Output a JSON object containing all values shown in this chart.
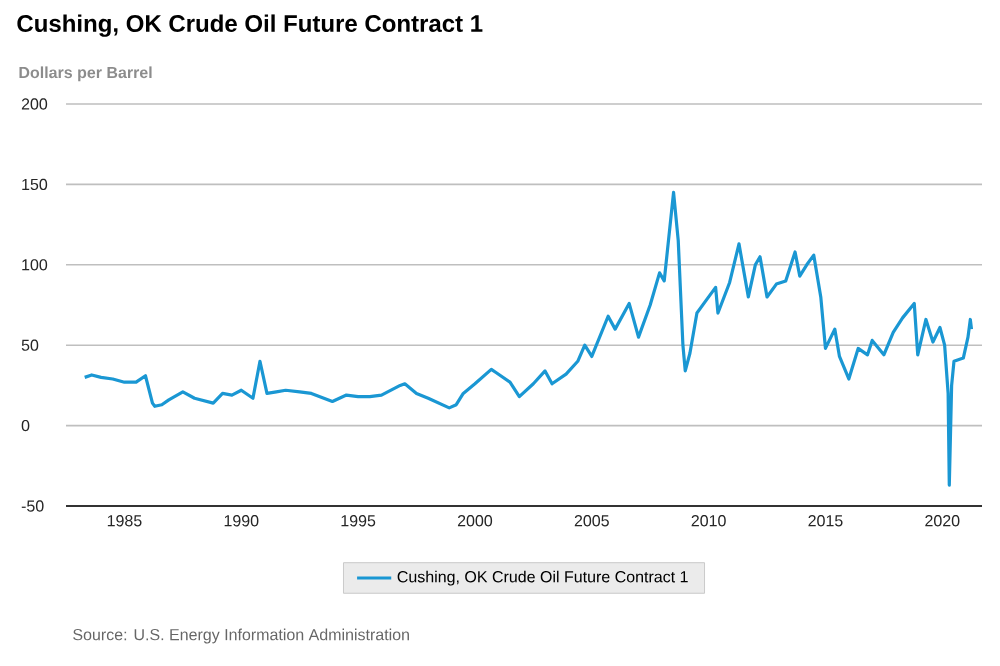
{
  "chart_data": {
    "type": "line",
    "title": "Cushing, OK Crude Oil Future Contract 1",
    "ylabel": "Dollars per Barrel",
    "annotations": [
      "Source: U.S. Energy Information Administration"
    ],
    "xlim": [
      1982.5,
      2021.7
    ],
    "xticks": [
      1985,
      1990,
      1995,
      2000,
      2005,
      2010,
      2015,
      2020
    ],
    "ylim": [
      -50,
      200
    ],
    "yticks": [
      -50,
      0,
      50,
      100,
      150,
      200
    ],
    "grid": "y",
    "legend": "bottom",
    "marker": "none",
    "line_style": "solid",
    "series": [
      {
        "name": "Cushing, OK Crude Oil Future Contract 1",
        "color": "#1a97d3",
        "x": [
          1983.3,
          1983.6,
          1984.0,
          1984.5,
          1985.0,
          1985.5,
          1985.9,
          1986.2,
          1986.3,
          1986.6,
          1986.9,
          1987.5,
          1988.0,
          1988.8,
          1989.2,
          1989.6,
          1990.0,
          1990.5,
          1990.8,
          1991.1,
          1991.5,
          1991.9,
          1992.5,
          1993.0,
          1993.9,
          1994.5,
          1995.0,
          1995.5,
          1996.0,
          1996.8,
          1997.0,
          1997.5,
          1998.0,
          1998.9,
          1999.2,
          1999.5,
          2000.0,
          2000.7,
          2000.9,
          2001.5,
          2001.9,
          2002.5,
          2003.0,
          2003.3,
          2003.9,
          2004.4,
          2004.7,
          2005.0,
          2005.7,
          2006.0,
          2006.6,
          2007.0,
          2007.5,
          2007.9,
          2008.1,
          2008.5,
          2008.7,
          2008.9,
          2009.0,
          2009.2,
          2009.5,
          2009.9,
          2010.3,
          2010.4,
          2010.9,
          2011.3,
          2011.7,
          2012.0,
          2012.2,
          2012.5,
          2012.9,
          2013.3,
          2013.7,
          2013.9,
          2014.2,
          2014.5,
          2014.8,
          2015.0,
          2015.4,
          2015.6,
          2016.0,
          2016.4,
          2016.8,
          2017.0,
          2017.5,
          2017.9,
          2018.3,
          2018.8,
          2018.95,
          2019.3,
          2019.6,
          2019.9,
          2020.1,
          2020.25,
          2020.3,
          2020.4,
          2020.5,
          2020.9,
          2021.1,
          2021.2,
          2021.25
        ],
        "values": [
          30,
          31.5,
          30,
          29,
          27,
          27,
          31,
          14,
          12,
          13,
          16,
          21,
          17,
          14,
          20,
          19,
          22,
          17,
          40,
          20,
          21,
          22,
          21,
          20,
          15,
          19,
          18,
          18,
          19,
          25,
          26,
          20,
          17,
          11,
          13,
          20,
          26,
          35,
          33,
          27,
          18,
          26,
          34,
          26,
          32,
          40,
          50,
          43,
          68,
          60,
          76,
          55,
          75,
          95,
          90,
          145,
          115,
          50,
          34,
          45,
          70,
          78,
          86,
          70,
          89,
          113,
          80,
          100,
          105,
          80,
          88,
          90,
          108,
          93,
          100,
          106,
          80,
          48,
          60,
          43,
          29,
          48,
          44,
          53,
          44,
          58,
          67,
          76,
          44,
          66,
          52,
          61,
          50,
          20,
          -37,
          25,
          40,
          42,
          55,
          66,
          60
        ]
      }
    ]
  }
}
